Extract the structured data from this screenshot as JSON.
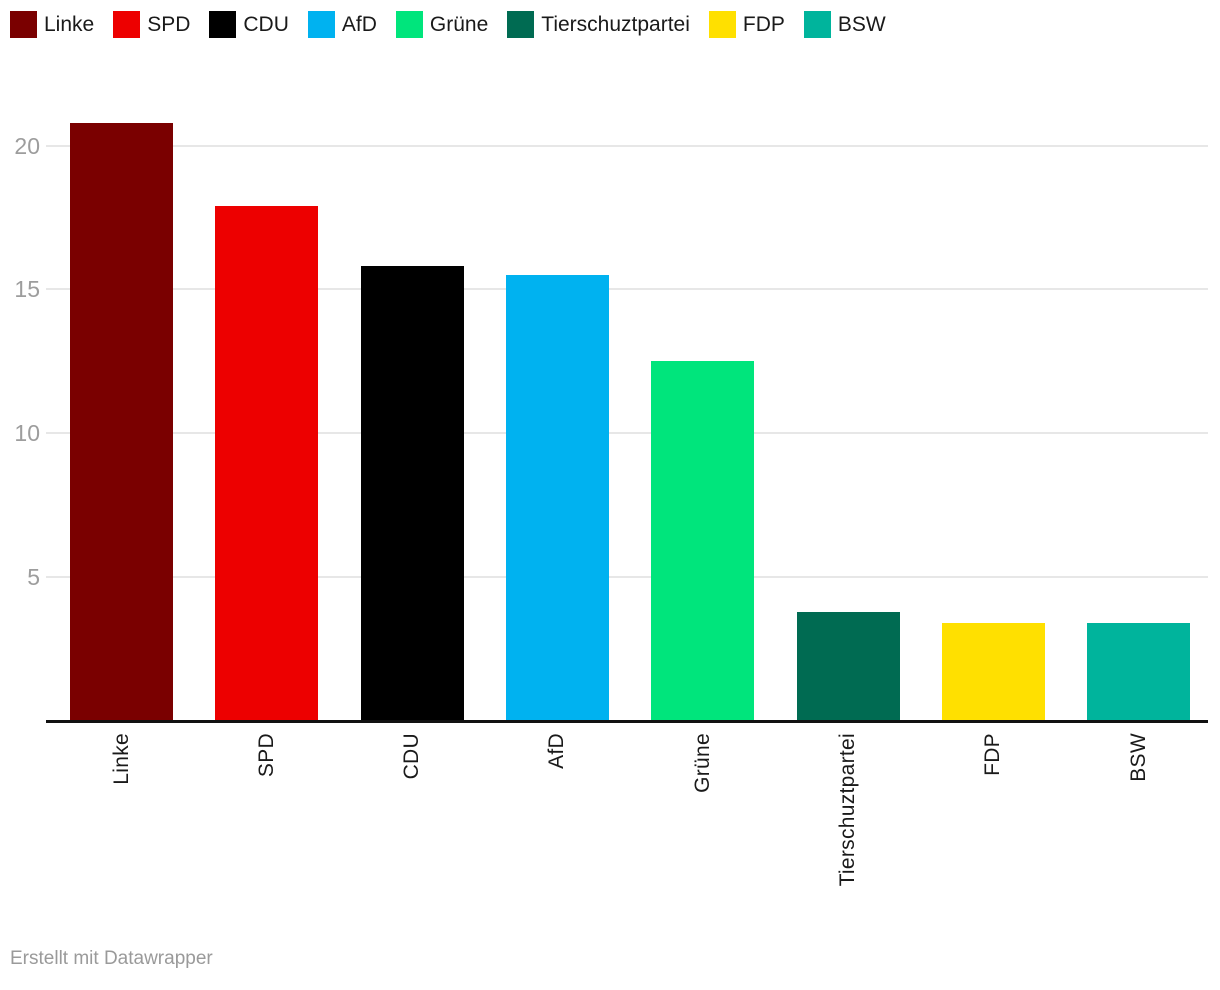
{
  "legend": {
    "position": "top",
    "items": [
      {
        "label": "Linke",
        "color": "#7a0000"
      },
      {
        "label": "SPD",
        "color": "#ed0000"
      },
      {
        "label": "CDU",
        "color": "#000000"
      },
      {
        "label": "AfD",
        "color": "#00b2f0"
      },
      {
        "label": "Grüne",
        "color": "#00e57c"
      },
      {
        "label": "Tierschuztpartei",
        "color": "#006b52"
      },
      {
        "label": "FDP",
        "color": "#ffe000"
      },
      {
        "label": "BSW",
        "color": "#00b49c"
      }
    ]
  },
  "chart_data": {
    "type": "bar",
    "title": "",
    "xlabel": "",
    "ylabel": "",
    "categories": [
      "Linke",
      "SPD",
      "CDU",
      "AfD",
      "Grüne",
      "Tierschuztpartei",
      "FDP",
      "BSW"
    ],
    "values": [
      20.8,
      17.9,
      15.8,
      15.5,
      12.5,
      3.8,
      3.4,
      3.4
    ],
    "colors": [
      "#7a0000",
      "#ed0000",
      "#000000",
      "#00b2f0",
      "#00e57c",
      "#006b52",
      "#ffe000",
      "#00b49c"
    ],
    "yticks": [
      5,
      10,
      15,
      20
    ],
    "ylim": [
      0,
      21.6
    ],
    "grid": "horizontal",
    "legend_position": "top",
    "bar_label_rotation": -90
  },
  "footer": {
    "credit": "Erstellt mit Datawrapper"
  },
  "colors": {
    "gridline": "#e7e7e7",
    "axis_line": "#111111",
    "tick_label": "#9d9d9d",
    "category_label": "#1a1a1a",
    "legend_label": "#1a1a1a",
    "footer_text": "#9a9a9a",
    "background": "#ffffff"
  }
}
